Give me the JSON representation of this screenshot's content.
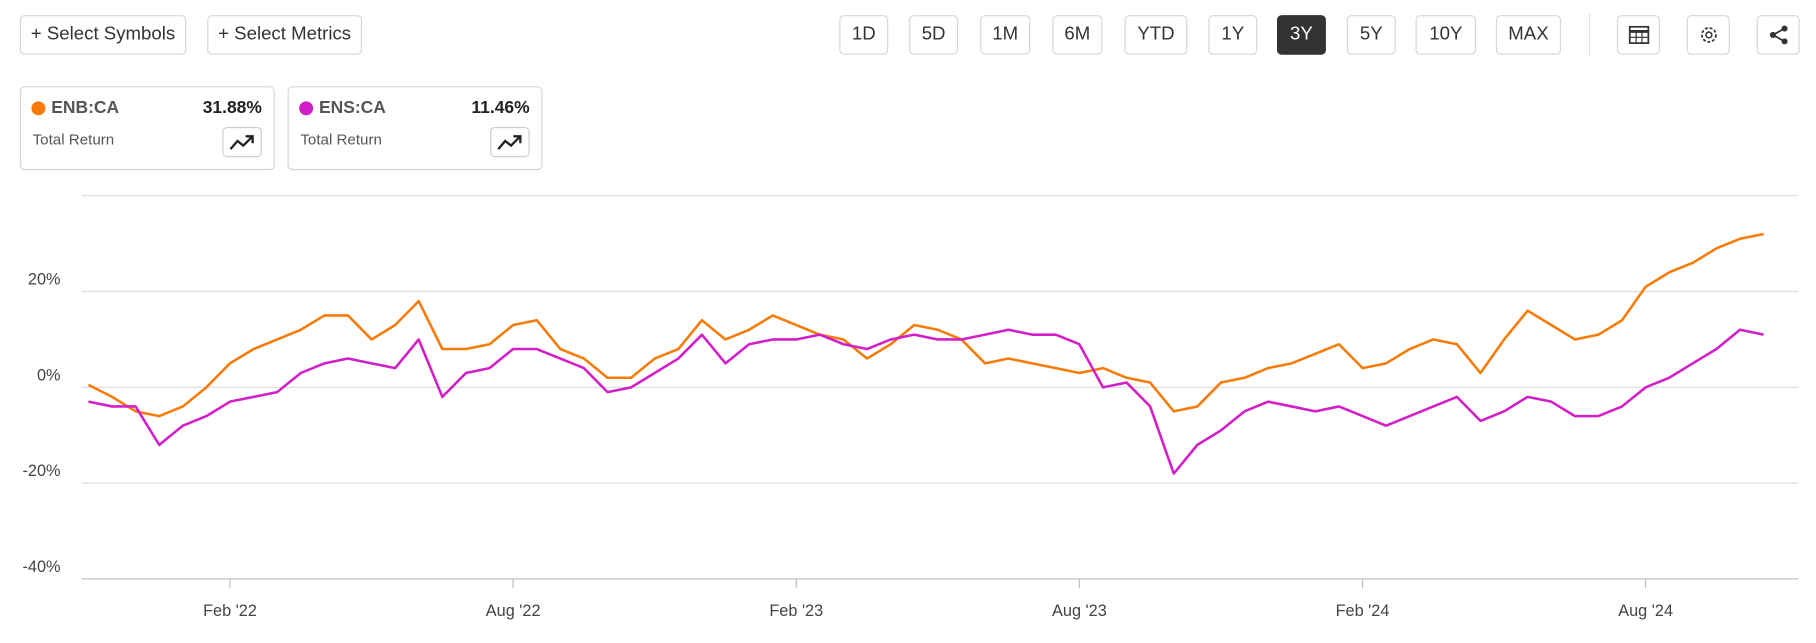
{
  "toolbar": {
    "symbols": "+ Select Symbols",
    "metrics": "+ Select Metrics",
    "ranges": [
      "1D",
      "5D",
      "1M",
      "6M",
      "YTD",
      "1Y",
      "3Y",
      "5Y",
      "10Y",
      "MAX"
    ],
    "active_range": "3Y"
  },
  "legend_cards": [
    {
      "value": "31.88%",
      "metric": "Total Return"
    },
    {
      "value": "11.46%",
      "metric": "Total Return"
    }
  ],
  "chart_data": {
    "type": "line",
    "categories": [
      null,
      null,
      null,
      null,
      null,
      null,
      "Feb '22",
      null,
      null,
      null,
      null,
      null,
      null,
      null,
      null,
      null,
      null,
      null,
      "Aug '22",
      null,
      null,
      null,
      null,
      null,
      null,
      null,
      null,
      null,
      null,
      null,
      "Feb '23",
      null,
      null,
      null,
      null,
      null,
      null,
      null,
      null,
      null,
      null,
      null,
      "Aug '23",
      null,
      null,
      null,
      null,
      null,
      null,
      null,
      null,
      null,
      null,
      null,
      "Feb '24",
      null,
      null,
      null,
      null,
      null,
      null,
      null,
      null,
      null,
      null,
      null,
      "Aug '24",
      null,
      null,
      null,
      null,
      null
    ],
    "series": [
      {
        "name": "ENB:CA",
        "color": "#f77b09",
        "values": [
          0.5,
          -2,
          -5,
          -6,
          -4,
          0,
          5,
          8,
          10,
          12,
          15,
          15,
          10,
          13,
          18,
          8,
          8,
          9,
          13,
          14,
          8,
          6,
          2,
          2,
          6,
          8,
          14,
          10,
          12,
          15,
          13,
          11,
          10,
          6,
          9,
          13,
          12,
          10,
          5,
          6,
          5,
          4,
          3,
          4,
          2,
          1,
          -5,
          -4,
          1,
          2,
          4,
          5,
          7,
          9,
          4,
          5,
          8,
          10,
          9,
          3,
          10,
          16,
          13,
          10,
          11,
          14,
          21,
          24,
          26,
          29,
          31,
          32
        ]
      },
      {
        "name": "ENS:CA",
        "color": "#d21fc8",
        "values": [
          -3,
          -4,
          -4,
          -12,
          -8,
          -6,
          -3,
          -2,
          -1,
          3,
          5,
          6,
          5,
          4,
          10,
          -2,
          3,
          4,
          8,
          8,
          6,
          4,
          -1,
          0,
          3,
          6,
          11,
          5,
          9,
          10,
          10,
          11,
          9,
          8,
          10,
          11,
          10,
          10,
          11,
          12,
          11,
          11,
          9,
          0,
          1,
          -4,
          -18,
          -12,
          -9,
          -5,
          -3,
          -4,
          -5,
          -4,
          -6,
          -8,
          -6,
          -4,
          -2,
          -7,
          -5,
          -2,
          -3,
          -6,
          -6,
          -4,
          0,
          2,
          5,
          8,
          12,
          11
        ]
      }
    ],
    "ylim": [
      -40,
      40
    ],
    "yticks": [
      {
        "value": -40,
        "label": "-40%"
      },
      {
        "value": -20,
        "label": "-20%"
      },
      {
        "value": 0,
        "label": "0%"
      },
      {
        "value": 20,
        "label": "20%"
      }
    ],
    "grid": true
  }
}
